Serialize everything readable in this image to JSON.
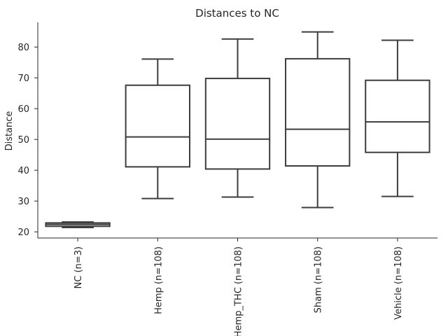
{
  "chart_data": {
    "type": "box",
    "title": "Distances to NC",
    "xlabel": "",
    "ylabel": "Distance",
    "ylim": [
      18,
      88
    ],
    "yticks": [
      20,
      30,
      40,
      50,
      60,
      70,
      80
    ],
    "grid": false,
    "categories": [
      "NC (n=3)",
      "Hemp (n=108)",
      "Hemp_THC (n=108)",
      "Sham (n=108)",
      "Vehicle (n=108)"
    ],
    "boxes": [
      {
        "whisker_low": 21.4,
        "q1": 21.8,
        "median": 22.4,
        "q3": 22.9,
        "whisker_high": 23.2
      },
      {
        "whisker_low": 30.8,
        "q1": 41.1,
        "median": 50.8,
        "q3": 67.6,
        "whisker_high": 76.1
      },
      {
        "whisker_low": 31.3,
        "q1": 40.4,
        "median": 50.1,
        "q3": 69.8,
        "whisker_high": 82.6
      },
      {
        "whisker_low": 27.9,
        "q1": 41.4,
        "median": 53.3,
        "q3": 76.2,
        "whisker_high": 84.9
      },
      {
        "whisker_low": 31.5,
        "q1": 45.8,
        "median": 55.7,
        "q3": 69.2,
        "whisker_high": 82.2
      }
    ]
  }
}
